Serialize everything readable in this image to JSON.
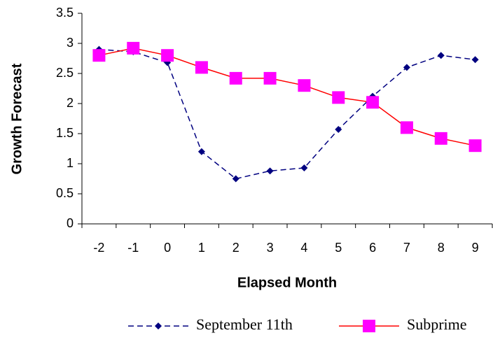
{
  "chart_data": {
    "type": "line",
    "x_label": "Elapsed Month",
    "y_label": "Growth Forecast",
    "categories": [
      "-2",
      "-1",
      "0",
      "1",
      "2",
      "3",
      "4",
      "5",
      "6",
      "7",
      "8",
      "9"
    ],
    "series": [
      {
        "name": "September 11th",
        "color": "#000080",
        "marker_color": "#000080",
        "marker": "diamond",
        "dashed": true,
        "values": [
          2.9,
          2.86,
          2.68,
          1.2,
          0.75,
          0.88,
          0.93,
          1.57,
          2.12,
          2.6,
          2.8,
          2.73
        ]
      },
      {
        "name": "Subprime",
        "color": "#ff0000",
        "marker_color": "#ff00ff",
        "marker": "square",
        "dashed": false,
        "values": [
          2.8,
          2.92,
          2.8,
          2.6,
          2.42,
          2.42,
          2.3,
          2.1,
          2.02,
          1.6,
          1.42,
          1.3
        ]
      }
    ],
    "ylim": [
      0,
      3.5
    ],
    "yticks": [
      0,
      0.5,
      1,
      1.5,
      2,
      2.5,
      3,
      3.5
    ],
    "grid": false,
    "legend": "bottom"
  }
}
